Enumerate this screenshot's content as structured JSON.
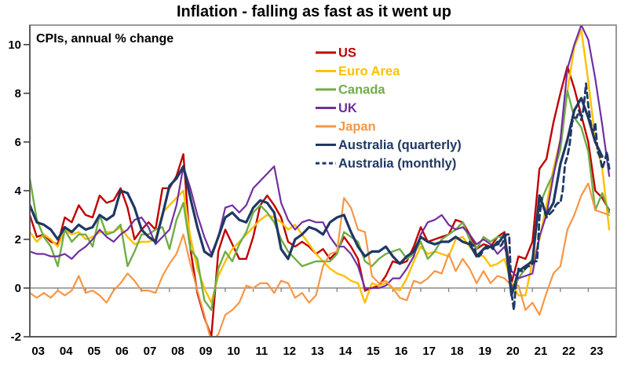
{
  "chart_data": {
    "type": "line",
    "title": "Inflation - falling as fast as it went up",
    "annotation": "CPIs, annual % change",
    "xlabel": "",
    "ylabel": "",
    "xlim": [
      2003,
      2024
    ],
    "ylim": [
      -2,
      10.8
    ],
    "yticks": [
      -2,
      0,
      2,
      4,
      6,
      8,
      10
    ],
    "xtick_labels": [
      "03",
      "04",
      "05",
      "06",
      "07",
      "08",
      "09",
      "10",
      "11",
      "12",
      "13",
      "14",
      "15",
      "16",
      "17",
      "18",
      "19",
      "20",
      "21",
      "22",
      "23"
    ],
    "grid": "zero-line-only",
    "legend_position": "inside-top-center",
    "axis_color": "#595959",
    "frame_color": "#808080",
    "zero_line_color": "#808080",
    "series": [
      {
        "name": "US",
        "color": "#C00000",
        "style": "solid",
        "width": 2.4,
        "x_start": 2003.0,
        "x_step": 0.25,
        "values": [
          3.0,
          2.1,
          2.2,
          1.9,
          1.8,
          2.9,
          2.7,
          3.4,
          3.0,
          2.9,
          3.8,
          3.5,
          3.6,
          4.1,
          3.3,
          2.0,
          2.4,
          2.7,
          2.4,
          4.1,
          4.1,
          4.6,
          5.5,
          1.6,
          -0.2,
          -1.2,
          -2.0,
          1.5,
          2.4,
          1.8,
          1.2,
          1.2,
          2.1,
          3.4,
          3.8,
          3.4,
          2.9,
          1.9,
          1.7,
          1.9,
          1.7,
          1.4,
          1.6,
          1.2,
          1.5,
          2.1,
          1.7,
          1.2,
          -0.1,
          0.0,
          0.1,
          0.5,
          1.1,
          1.0,
          1.1,
          1.7,
          2.5,
          1.9,
          2.0,
          2.1,
          2.2,
          2.8,
          2.7,
          2.2,
          1.6,
          1.8,
          1.7,
          2.1,
          2.3,
          0.2,
          1.3,
          1.2,
          1.9,
          4.9,
          5.3,
          6.8,
          8.0,
          9.1,
          8.2,
          7.1,
          6.0,
          4.0,
          3.7,
          3.2
        ]
      },
      {
        "name": "Euro Area",
        "color": "#FFC000",
        "style": "solid",
        "width": 2.4,
        "x_start": 2003.0,
        "x_step": 0.25,
        "values": [
          2.3,
          1.9,
          2.2,
          2.0,
          1.7,
          2.4,
          2.2,
          2.3,
          2.0,
          2.1,
          2.3,
          2.3,
          2.3,
          2.5,
          2.1,
          1.8,
          1.9,
          1.9,
          2.0,
          3.1,
          3.4,
          3.7,
          4.0,
          2.1,
          0.8,
          0.0,
          -0.6,
          0.5,
          1.1,
          1.6,
          1.9,
          2.2,
          2.5,
          2.8,
          3.0,
          2.9,
          2.7,
          2.4,
          2.6,
          2.2,
          1.8,
          1.4,
          1.1,
          0.8,
          0.6,
          0.5,
          0.3,
          0.2,
          -0.6,
          0.2,
          0.1,
          0.2,
          0.0,
          -0.1,
          0.4,
          1.1,
          1.7,
          1.4,
          1.5,
          1.4,
          1.3,
          2.0,
          2.1,
          1.7,
          1.4,
          1.3,
          0.9,
          1.0,
          1.2,
          0.2,
          -0.3,
          -0.3,
          1.1,
          2.0,
          3.4,
          4.9,
          6.1,
          8.1,
          9.9,
          10.6,
          8.5,
          6.1,
          4.9,
          2.4
        ]
      },
      {
        "name": "Canada",
        "color": "#70AD47",
        "style": "solid",
        "width": 2.4,
        "x_start": 2003.0,
        "x_step": 0.25,
        "values": [
          4.5,
          2.8,
          2.1,
          1.7,
          0.9,
          2.4,
          1.9,
          2.2,
          2.2,
          1.7,
          3.0,
          2.2,
          2.3,
          2.6,
          0.9,
          1.5,
          2.2,
          2.2,
          2.4,
          2.5,
          1.6,
          2.8,
          3.5,
          1.6,
          1.2,
          -0.5,
          -0.9,
          0.8,
          1.5,
          1.1,
          1.8,
          2.3,
          3.1,
          3.4,
          3.1,
          2.7,
          2.0,
          1.5,
          1.2,
          0.9,
          1.0,
          1.1,
          1.1,
          1.1,
          1.4,
          2.3,
          2.1,
          1.9,
          1.1,
          0.9,
          1.2,
          1.4,
          1.5,
          1.6,
          1.2,
          1.4,
          1.9,
          1.2,
          1.5,
          2.0,
          2.2,
          2.4,
          2.7,
          2.0,
          1.6,
          2.1,
          1.9,
          2.1,
          2.1,
          -0.3,
          0.4,
          0.8,
          1.2,
          3.4,
          4.1,
          4.7,
          5.7,
          8.1,
          7.0,
          6.6,
          5.6,
          3.2,
          3.9,
          3.1
        ]
      },
      {
        "name": "UK",
        "color": "#7030A0",
        "style": "solid",
        "width": 2.2,
        "x_start": 2003.0,
        "x_step": 0.25,
        "values": [
          1.5,
          1.4,
          1.4,
          1.3,
          1.3,
          1.4,
          1.2,
          1.5,
          1.7,
          2.0,
          2.4,
          2.1,
          1.9,
          2.2,
          2.4,
          2.8,
          2.9,
          2.5,
          1.8,
          2.1,
          2.4,
          3.4,
          5.0,
          4.1,
          3.0,
          2.1,
          1.4,
          2.1,
          3.3,
          3.4,
          3.1,
          3.4,
          4.1,
          4.4,
          4.7,
          5.0,
          3.5,
          2.8,
          2.4,
          2.7,
          2.8,
          2.7,
          2.7,
          2.1,
          1.7,
          1.7,
          1.4,
          0.9,
          0.0,
          0.0,
          0.0,
          0.1,
          0.4,
          0.4,
          0.8,
          1.3,
          2.2,
          2.7,
          2.8,
          3.0,
          2.6,
          2.4,
          2.5,
          2.2,
          1.8,
          2.0,
          1.8,
          1.4,
          1.7,
          0.7,
          0.4,
          0.5,
          0.6,
          2.1,
          3.0,
          4.6,
          6.1,
          9.0,
          10.0,
          10.8,
          10.2,
          8.6,
          6.7,
          4.6
        ]
      },
      {
        "name": "Japan",
        "color": "#F79646",
        "style": "solid",
        "width": 2.2,
        "x_start": 2003.0,
        "x_step": 0.25,
        "values": [
          -0.2,
          -0.4,
          -0.2,
          -0.4,
          -0.1,
          -0.3,
          -0.1,
          0.5,
          -0.2,
          -0.1,
          -0.3,
          -0.6,
          -0.1,
          0.2,
          0.6,
          0.3,
          -0.1,
          -0.1,
          -0.2,
          0.5,
          1.0,
          1.4,
          2.2,
          1.0,
          -0.1,
          -1.1,
          -2.2,
          -1.9,
          -1.1,
          -0.9,
          -0.6,
          0.1,
          0.0,
          0.2,
          0.2,
          -0.2,
          0.3,
          0.2,
          -0.4,
          -0.2,
          -0.6,
          -0.3,
          0.9,
          1.4,
          1.5,
          3.7,
          3.3,
          2.4,
          2.3,
          0.5,
          0.2,
          0.3,
          0.0,
          -0.4,
          -0.5,
          0.3,
          0.2,
          0.4,
          0.7,
          0.6,
          1.4,
          0.7,
          1.2,
          0.8,
          0.2,
          0.7,
          0.2,
          0.5,
          0.4,
          0.1,
          0.1,
          -0.9,
          -0.6,
          -1.1,
          -0.2,
          0.6,
          0.9,
          2.4,
          3.0,
          3.8,
          4.3,
          3.2,
          3.1,
          3.0
        ]
      },
      {
        "name": "Australia (quarterly)",
        "color": "#1F3864",
        "style": "solid",
        "width": 3.2,
        "x_start": 2003.0,
        "x_step": 0.25,
        "values": [
          3.4,
          2.7,
          2.6,
          2.4,
          2.0,
          2.5,
          2.3,
          2.6,
          2.4,
          2.5,
          3.0,
          2.8,
          3.0,
          4.0,
          3.9,
          3.3,
          2.4,
          2.1,
          1.9,
          3.0,
          4.2,
          4.5,
          5.0,
          3.7,
          2.5,
          1.5,
          1.3,
          2.1,
          2.9,
          3.1,
          2.8,
          2.7,
          3.3,
          3.6,
          3.5,
          3.1,
          1.6,
          1.2,
          2.0,
          2.2,
          2.5,
          2.4,
          2.2,
          2.7,
          2.9,
          3.0,
          2.3,
          1.7,
          1.3,
          1.5,
          1.5,
          1.7,
          1.3,
          1.0,
          1.3,
          1.5,
          2.1,
          1.9,
          1.8,
          1.9,
          1.9,
          2.1,
          1.9,
          1.8,
          1.3,
          1.6,
          1.7,
          1.8,
          2.2,
          -0.3,
          0.7,
          0.9,
          1.1,
          3.8,
          3.0,
          3.5,
          5.1,
          6.1,
          7.3,
          7.8,
          7.0,
          6.0,
          5.4
        ]
      },
      {
        "name": "Australia (monthly)",
        "color": "#1F3864",
        "style": "dashed",
        "width": 2.8,
        "x_start": 2018.75,
        "x_step": 0.0833333,
        "values": [
          1.9,
          1.8,
          1.7,
          1.3,
          1.3,
          1.4,
          1.6,
          1.7,
          1.6,
          1.7,
          1.6,
          1.8,
          1.9,
          1.7,
          1.8,
          2.1,
          2.2,
          2.2,
          -0.2,
          -0.9,
          0.3,
          0.8,
          0.7,
          0.7,
          0.8,
          0.9,
          0.9,
          1.0,
          1.1,
          1.1,
          2.9,
          3.7,
          3.2,
          2.9,
          3.0,
          3.1,
          3.2,
          3.4,
          3.5,
          3.5,
          4.0,
          5.1,
          5.4,
          5.9,
          6.8,
          7.0,
          7.0,
          7.3,
          6.9,
          7.4,
          8.4,
          7.5,
          6.8,
          6.3,
          6.8,
          5.6,
          5.4,
          4.9,
          5.2,
          5.6,
          4.9
        ]
      }
    ]
  }
}
